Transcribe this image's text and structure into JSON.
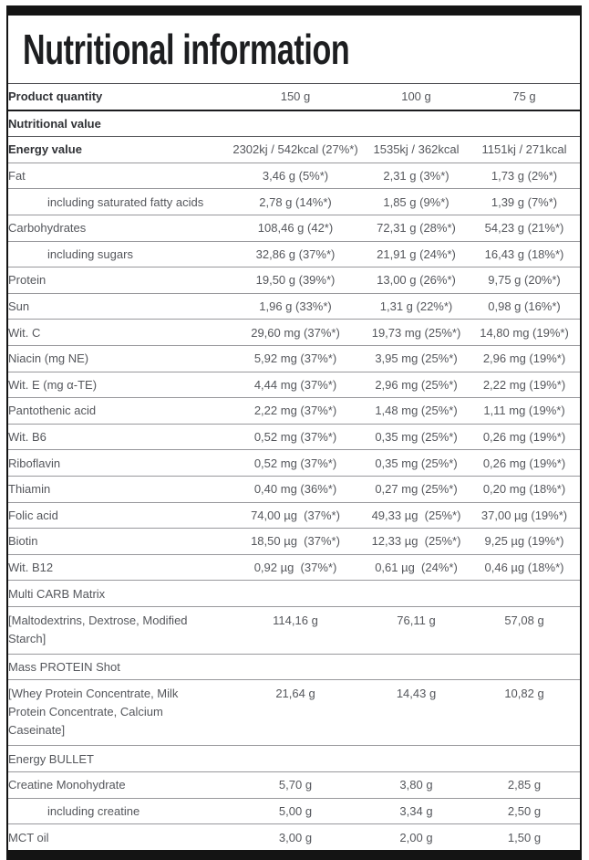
{
  "title": "Nutritional information",
  "table": {
    "rows": [
      {
        "label": "Product quantity",
        "values": [
          "150 g",
          "100 g",
          "75 g"
        ]
      },
      {
        "label": "Nutritional value",
        "values": []
      },
      {
        "label": "Energy value",
        "values": [
          "2302kj / 542kcal (27%*)",
          "1535kj / 362kcal",
          "1151kj / 271kcal"
        ]
      },
      {
        "label": "Fat",
        "values": [
          "3,46 g (5%*)",
          "2,31 g (3%*)",
          "1,73 g (2%*)"
        ]
      },
      {
        "label": "including saturated fatty acids",
        "values": [
          "2,78 g (14%*)",
          "1,85 g (9%*)",
          "1,39 g (7%*)"
        ]
      },
      {
        "label": "Carbohydrates",
        "values": [
          "108,46 g (42*)",
          "72,31 g (28%*)",
          "54,23 g (21%*)"
        ]
      },
      {
        "label": "including sugars",
        "values": [
          "32,86 g (37%*)",
          "21,91 g (24%*)",
          "16,43 g (18%*)"
        ]
      },
      {
        "label": "Protein",
        "values": [
          "19,50 g (39%*)",
          "13,00 g (26%*)",
          "9,75 g (20%*)"
        ]
      },
      {
        "label": "Sun",
        "values": [
          "1,96 g (33%*)",
          "1,31 g (22%*)",
          "0,98 g (16%*)"
        ]
      },
      {
        "label": "Wit. C",
        "values": [
          "29,60 mg (37%*)",
          "19,73 mg (25%*)",
          "14,80 mg (19%*)"
        ]
      },
      {
        "label": "Niacin (mg NE)",
        "values": [
          "5,92 mg (37%*)",
          "3,95 mg (25%*)",
          "2,96 mg (19%*)"
        ]
      },
      {
        "label": "Wit. E (mg α-TE)",
        "values": [
          "4,44 mg (37%*)",
          "2,96 mg (25%*)",
          "2,22 mg (19%*)"
        ]
      },
      {
        "label": "Pantothenic acid",
        "values": [
          "2,22 mg (37%*)",
          "1,48 mg (25%*)",
          "1,11 mg (19%*)"
        ]
      },
      {
        "label": "Wit. B6",
        "values": [
          "0,52 mg (37%*)",
          "0,35 mg (25%*)",
          "0,26 mg (19%*)"
        ]
      },
      {
        "label": "Riboflavin",
        "values": [
          "0,52 mg (37%*)",
          "0,35 mg (25%*)",
          "0,26 mg (19%*)"
        ]
      },
      {
        "label": "Thiamin",
        "values": [
          "0,40 mg (36%*)",
          "0,27 mg (25%*)",
          "0,20 mg (18%*)"
        ]
      },
      {
        "label": "Folic acid",
        "values": [
          "74,00 µg  (37%*)",
          "49,33 µg  (25%*)",
          "37,00 µg (19%*)"
        ]
      },
      {
        "label": "Biotin",
        "values": [
          "18,50 µg  (37%*)",
          "12,33 µg  (25%*)",
          "9,25 µg (19%*)"
        ]
      },
      {
        "label": "Wit. B12",
        "values": [
          "0,92 µg  (37%*)",
          "0,61 µg  (24%*)",
          "0,46 µg (18%*)"
        ]
      },
      {
        "label": "Multi CARB Matrix",
        "values": []
      },
      {
        "label": "[Maltodextrins, Dextrose, Modified Starch]",
        "values": [
          "114,16 g",
          "76,11 g",
          "57,08 g"
        ]
      },
      {
        "label": "Mass PROTEIN Shot",
        "values": []
      },
      {
        "label": "[Whey Protein Concentrate, Milk Protein Concentrate, Calcium Caseinate]",
        "values": [
          "21,64 g",
          "14,43 g",
          "10,82 g"
        ]
      },
      {
        "label": "Energy BULLET",
        "values": []
      },
      {
        "label": "Creatine Monohydrate",
        "values": [
          "5,70 g",
          "3,80 g",
          "2,85 g"
        ]
      },
      {
        "label": "including creatine",
        "values": [
          "5,00 g",
          "3,34 g",
          "2,50 g"
        ]
      },
      {
        "label": "MCT oil",
        "values": [
          "3,00 g",
          "2,00 g",
          "1,50 g"
        ]
      }
    ]
  }
}
